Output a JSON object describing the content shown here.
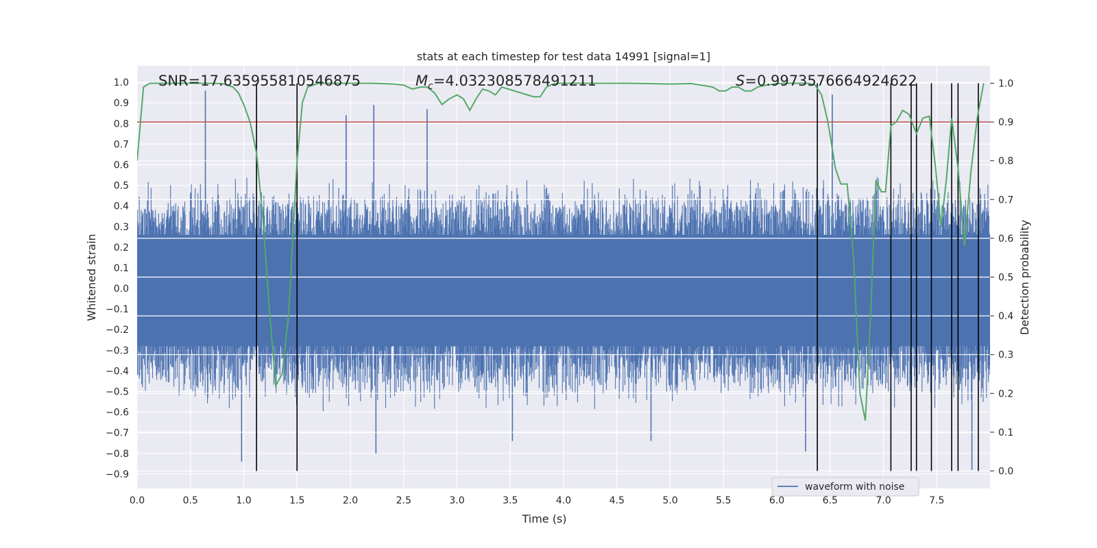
{
  "chart_data": {
    "type": "line",
    "title": "stats at each timestep for test data 14991 [signal=1]",
    "xlabel": "Time (s)",
    "ylabel": "Whitened strain",
    "ylabel_right": "Detection probability",
    "xlim": [
      0.0,
      8.0
    ],
    "ylim": [
      -0.97,
      1.08
    ],
    "ylim_right": [
      -0.045,
      1.045
    ],
    "x_ticks": [
      0.0,
      0.5,
      1.0,
      1.5,
      2.0,
      2.5,
      3.0,
      3.5,
      4.0,
      4.5,
      5.0,
      5.5,
      6.0,
      6.5,
      7.0,
      7.5
    ],
    "x_tick_labels": [
      "0.0",
      "0.5",
      "1.0",
      "1.5",
      "2.0",
      "2.5",
      "3.0",
      "3.5",
      "4.0",
      "4.5",
      "5.0",
      "5.5",
      "6.0",
      "6.5",
      "7.0",
      "7.5"
    ],
    "y_ticks": [
      1.0,
      0.9,
      0.8,
      0.7,
      0.6,
      0.5,
      0.4,
      0.3,
      0.2,
      0.1,
      0.0,
      -0.1,
      -0.2,
      -0.3,
      -0.4,
      -0.5,
      -0.6,
      -0.7,
      -0.8,
      -0.9
    ],
    "y_tick_labels": [
      "1.0",
      "0.9",
      "0.8",
      "0.7",
      "0.6",
      "0.5",
      "0.4",
      "0.3",
      "0.2",
      "0.1",
      "0.0",
      "−0.1",
      "−0.2",
      "−0.3",
      "−0.4",
      "−0.5",
      "−0.6",
      "−0.7",
      "−0.8",
      "−0.9"
    ],
    "y_right_ticks": [
      1.0,
      0.9,
      0.8,
      0.7,
      0.6,
      0.5,
      0.4,
      0.3,
      0.2,
      0.1,
      0.0
    ],
    "y_right_tick_labels": [
      "1.0",
      "0.9",
      "0.8",
      "0.7",
      "0.6",
      "0.5",
      "0.4",
      "0.3",
      "0.2",
      "0.1",
      "0.0"
    ],
    "grid": true,
    "legend_position": "lower-right",
    "annotations": {
      "snr": "SNR=17.635955810546875",
      "mc_symbol": "M",
      "mc_subscript": "c",
      "mc_value": "=4.032308578491211",
      "s_symbol": "S",
      "s_value": "=0.9973576664924622"
    },
    "threshold": {
      "value_right_axis": 0.9,
      "color": "#c44e52"
    },
    "vertical_markers_x": [
      1.12,
      1.5,
      6.38,
      7.07,
      7.26,
      7.31,
      7.45,
      7.64,
      7.7,
      7.89
    ],
    "series": [
      {
        "name": "waveform with noise",
        "color": "#4c72b0",
        "axis": "left",
        "style": "dense-noise",
        "envelope": {
          "typical_max": 0.48,
          "typical_min": -0.52,
          "peak_max": 0.96,
          "peak_min": -0.85
        },
        "peaks": [
          {
            "x": 0.64,
            "y": 0.96
          },
          {
            "x": 1.96,
            "y": 0.84
          },
          {
            "x": 2.22,
            "y": 0.89
          },
          {
            "x": 2.72,
            "y": 0.87
          },
          {
            "x": 6.52,
            "y": 0.94
          },
          {
            "x": 0.98,
            "y": -0.84
          },
          {
            "x": 2.24,
            "y": -0.8
          },
          {
            "x": 6.27,
            "y": -0.79
          },
          {
            "x": 7.83,
            "y": -0.88
          },
          {
            "x": 3.52,
            "y": -0.74
          },
          {
            "x": 4.82,
            "y": -0.74
          }
        ]
      },
      {
        "name": "",
        "color": "#55a868",
        "axis": "right",
        "x": [
          0.0,
          0.06,
          0.12,
          0.2,
          0.3,
          0.4,
          0.5,
          0.6,
          0.7,
          0.8,
          0.9,
          0.95,
          1.0,
          1.06,
          1.12,
          1.18,
          1.24,
          1.3,
          1.36,
          1.42,
          1.46,
          1.5,
          1.55,
          1.6,
          1.65,
          1.7,
          1.8,
          2.0,
          2.2,
          2.4,
          2.5,
          2.58,
          2.66,
          2.72,
          2.79,
          2.86,
          2.93,
          3.0,
          3.06,
          3.12,
          3.18,
          3.24,
          3.3,
          3.36,
          3.42,
          3.48,
          3.54,
          3.6,
          3.66,
          3.72,
          3.78,
          3.84,
          3.9,
          3.96,
          4.02,
          4.1,
          4.2,
          4.4,
          4.6,
          4.8,
          5.0,
          5.2,
          5.4,
          5.46,
          5.52,
          5.58,
          5.64,
          5.7,
          5.76,
          5.82,
          5.9,
          6.0,
          6.1,
          6.2,
          6.3,
          6.36,
          6.42,
          6.48,
          6.55,
          6.6,
          6.66,
          6.72,
          6.78,
          6.83,
          6.88,
          6.93,
          6.98,
          7.02,
          7.07,
          7.12,
          7.18,
          7.24,
          7.31,
          7.37,
          7.43,
          7.49,
          7.54,
          7.59,
          7.64,
          7.7,
          7.76,
          7.82,
          7.88,
          7.94
        ],
        "y": [
          0.8,
          0.99,
          1.0,
          1.0,
          1.0,
          1.0,
          1.0,
          1.0,
          1.0,
          0.999,
          0.99,
          0.975,
          0.945,
          0.9,
          0.82,
          0.65,
          0.42,
          0.22,
          0.25,
          0.4,
          0.6,
          0.8,
          0.95,
          0.99,
          0.995,
          1.0,
          1.0,
          1.0,
          1.0,
          0.998,
          0.995,
          0.985,
          0.99,
          0.99,
          0.975,
          0.945,
          0.96,
          0.97,
          0.96,
          0.93,
          0.96,
          0.985,
          0.98,
          0.97,
          0.99,
          0.985,
          0.98,
          0.975,
          0.97,
          0.965,
          0.965,
          0.99,
          0.998,
          1.0,
          1.0,
          1.0,
          1.0,
          1.0,
          1.0,
          0.999,
          0.998,
          0.999,
          0.99,
          0.98,
          0.98,
          0.99,
          0.99,
          0.98,
          0.98,
          0.99,
          0.995,
          0.999,
          1.0,
          1.0,
          1.0,
          0.995,
          0.97,
          0.9,
          0.78,
          0.74,
          0.74,
          0.55,
          0.2,
          0.13,
          0.4,
          0.75,
          0.72,
          0.72,
          0.89,
          0.9,
          0.93,
          0.92,
          0.87,
          0.91,
          0.915,
          0.78,
          0.63,
          0.75,
          0.91,
          0.78,
          0.58,
          0.77,
          0.91,
          1.0
        ]
      }
    ]
  },
  "legend": {
    "label": "waveform with noise"
  }
}
